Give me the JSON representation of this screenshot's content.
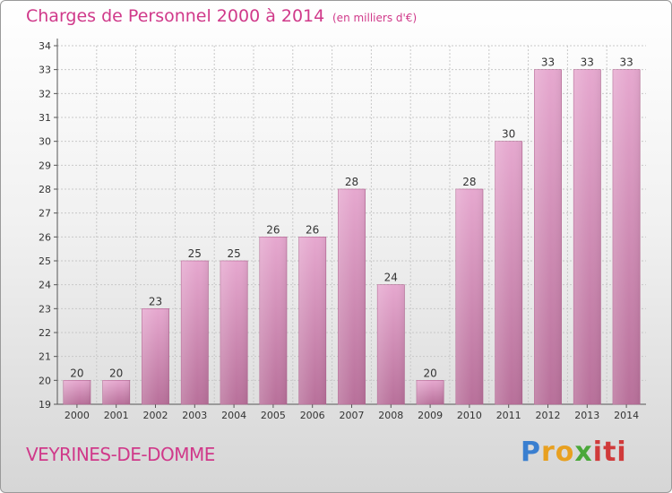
{
  "header": {
    "title": "Charges de Personnel 2000 à 2014",
    "subtitle": "(en milliers d'€)"
  },
  "footer": {
    "commune": "VEYRINES-DE-DOMME",
    "brand": "Proxiti"
  },
  "colors": {
    "accent": "#d0398a",
    "bar_top": "#e6a8cf",
    "bar_bottom": "#b8709a"
  },
  "chart_data": {
    "type": "bar",
    "categories": [
      "2000",
      "2001",
      "2002",
      "2003",
      "2004",
      "2005",
      "2006",
      "2007",
      "2008",
      "2009",
      "2010",
      "2011",
      "2012",
      "2013",
      "2014"
    ],
    "values": [
      20,
      20,
      23,
      25,
      25,
      26,
      26,
      28,
      24,
      20,
      28,
      30,
      33,
      33,
      33
    ],
    "title": "Charges de Personnel 2000 à 2014",
    "subtitle": "(en milliers d'€)",
    "xlabel": "",
    "ylabel": "",
    "ylim": [
      19,
      34
    ],
    "yticks": [
      19,
      20,
      21,
      22,
      23,
      24,
      25,
      26,
      27,
      28,
      29,
      30,
      31,
      32,
      33,
      34
    ],
    "grid": true,
    "data_labels": true
  }
}
